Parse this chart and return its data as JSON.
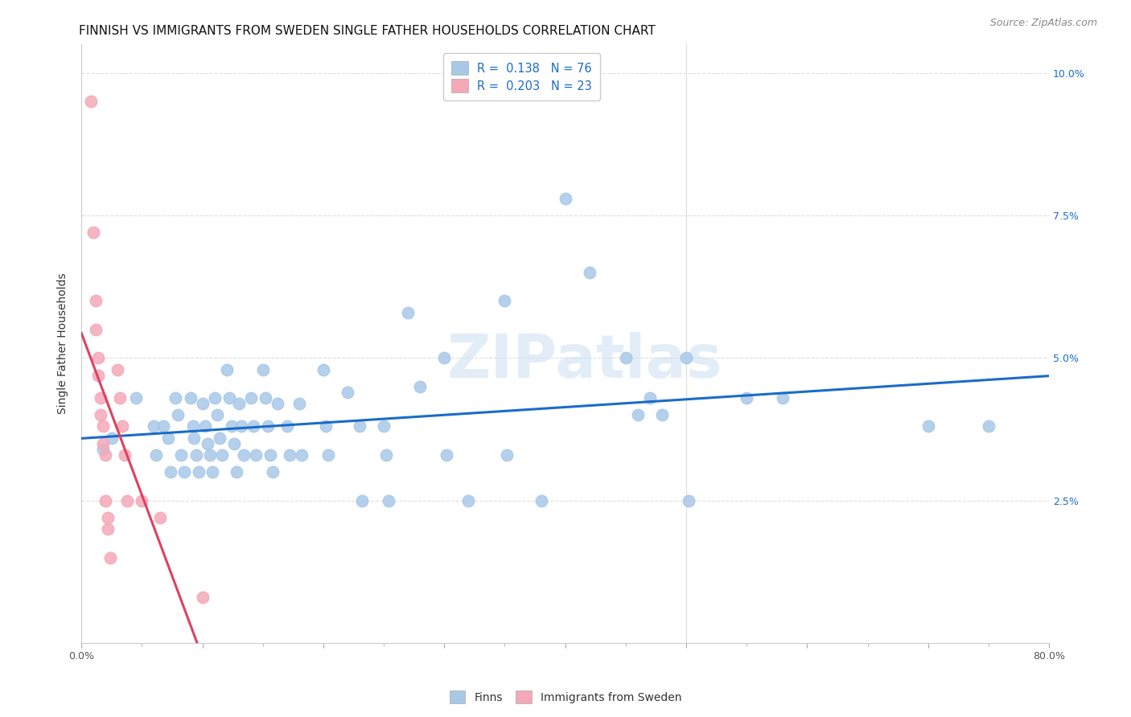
{
  "title": "FINNISH VS IMMIGRANTS FROM SWEDEN SINGLE FATHER HOUSEHOLDS CORRELATION CHART",
  "source": "Source: ZipAtlas.com",
  "ylabel": "Single Father Households",
  "watermark": "ZIPatlas",
  "xlim": [
    0.0,
    0.8
  ],
  "ylim": [
    0.0,
    0.105
  ],
  "xticks": [
    0.0,
    0.1,
    0.2,
    0.3,
    0.4,
    0.5,
    0.6,
    0.7,
    0.8
  ],
  "yticks": [
    0.0,
    0.025,
    0.05,
    0.075,
    0.1
  ],
  "yticklabels_right": [
    "",
    "2.5%",
    "5.0%",
    "7.5%",
    "10.0%"
  ],
  "r_finns": 0.138,
  "n_finns": 76,
  "r_immigrants": 0.203,
  "n_immigrants": 23,
  "legend_labels": [
    "Finns",
    "Immigrants from Sweden"
  ],
  "finns_color": "#a8c8e8",
  "immigrants_color": "#f4a8b8",
  "finns_line_color": "#1a6cc8",
  "immigrants_line_color": "#e04060",
  "finns_scatter": [
    [
      0.018,
      0.034
    ],
    [
      0.025,
      0.036
    ],
    [
      0.045,
      0.043
    ],
    [
      0.06,
      0.038
    ],
    [
      0.062,
      0.033
    ],
    [
      0.068,
      0.038
    ],
    [
      0.072,
      0.036
    ],
    [
      0.074,
      0.03
    ],
    [
      0.078,
      0.043
    ],
    [
      0.08,
      0.04
    ],
    [
      0.082,
      0.033
    ],
    [
      0.085,
      0.03
    ],
    [
      0.09,
      0.043
    ],
    [
      0.092,
      0.038
    ],
    [
      0.093,
      0.036
    ],
    [
      0.095,
      0.033
    ],
    [
      0.097,
      0.03
    ],
    [
      0.1,
      0.042
    ],
    [
      0.102,
      0.038
    ],
    [
      0.104,
      0.035
    ],
    [
      0.106,
      0.033
    ],
    [
      0.108,
      0.03
    ],
    [
      0.11,
      0.043
    ],
    [
      0.112,
      0.04
    ],
    [
      0.114,
      0.036
    ],
    [
      0.116,
      0.033
    ],
    [
      0.12,
      0.048
    ],
    [
      0.122,
      0.043
    ],
    [
      0.124,
      0.038
    ],
    [
      0.126,
      0.035
    ],
    [
      0.128,
      0.03
    ],
    [
      0.13,
      0.042
    ],
    [
      0.132,
      0.038
    ],
    [
      0.134,
      0.033
    ],
    [
      0.14,
      0.043
    ],
    [
      0.142,
      0.038
    ],
    [
      0.144,
      0.033
    ],
    [
      0.15,
      0.048
    ],
    [
      0.152,
      0.043
    ],
    [
      0.154,
      0.038
    ],
    [
      0.156,
      0.033
    ],
    [
      0.158,
      0.03
    ],
    [
      0.162,
      0.042
    ],
    [
      0.17,
      0.038
    ],
    [
      0.172,
      0.033
    ],
    [
      0.18,
      0.042
    ],
    [
      0.182,
      0.033
    ],
    [
      0.2,
      0.048
    ],
    [
      0.202,
      0.038
    ],
    [
      0.204,
      0.033
    ],
    [
      0.22,
      0.044
    ],
    [
      0.23,
      0.038
    ],
    [
      0.232,
      0.025
    ],
    [
      0.25,
      0.038
    ],
    [
      0.252,
      0.033
    ],
    [
      0.254,
      0.025
    ],
    [
      0.27,
      0.058
    ],
    [
      0.28,
      0.045
    ],
    [
      0.3,
      0.05
    ],
    [
      0.302,
      0.033
    ],
    [
      0.32,
      0.025
    ],
    [
      0.35,
      0.06
    ],
    [
      0.352,
      0.033
    ],
    [
      0.38,
      0.025
    ],
    [
      0.4,
      0.078
    ],
    [
      0.42,
      0.065
    ],
    [
      0.45,
      0.05
    ],
    [
      0.46,
      0.04
    ],
    [
      0.47,
      0.043
    ],
    [
      0.48,
      0.04
    ],
    [
      0.5,
      0.05
    ],
    [
      0.502,
      0.025
    ],
    [
      0.55,
      0.043
    ],
    [
      0.58,
      0.043
    ],
    [
      0.7,
      0.038
    ],
    [
      0.75,
      0.038
    ]
  ],
  "immigrants_scatter": [
    [
      0.008,
      0.095
    ],
    [
      0.01,
      0.072
    ],
    [
      0.012,
      0.06
    ],
    [
      0.012,
      0.055
    ],
    [
      0.014,
      0.05
    ],
    [
      0.014,
      0.047
    ],
    [
      0.016,
      0.043
    ],
    [
      0.016,
      0.04
    ],
    [
      0.018,
      0.038
    ],
    [
      0.018,
      0.035
    ],
    [
      0.02,
      0.033
    ],
    [
      0.02,
      0.025
    ],
    [
      0.022,
      0.022
    ],
    [
      0.022,
      0.02
    ],
    [
      0.024,
      0.015
    ],
    [
      0.03,
      0.048
    ],
    [
      0.032,
      0.043
    ],
    [
      0.034,
      0.038
    ],
    [
      0.036,
      0.033
    ],
    [
      0.038,
      0.025
    ],
    [
      0.05,
      0.025
    ],
    [
      0.065,
      0.022
    ],
    [
      0.1,
      0.008
    ]
  ],
  "title_fontsize": 11,
  "source_fontsize": 9,
  "tick_fontsize": 9,
  "label_fontsize": 10
}
